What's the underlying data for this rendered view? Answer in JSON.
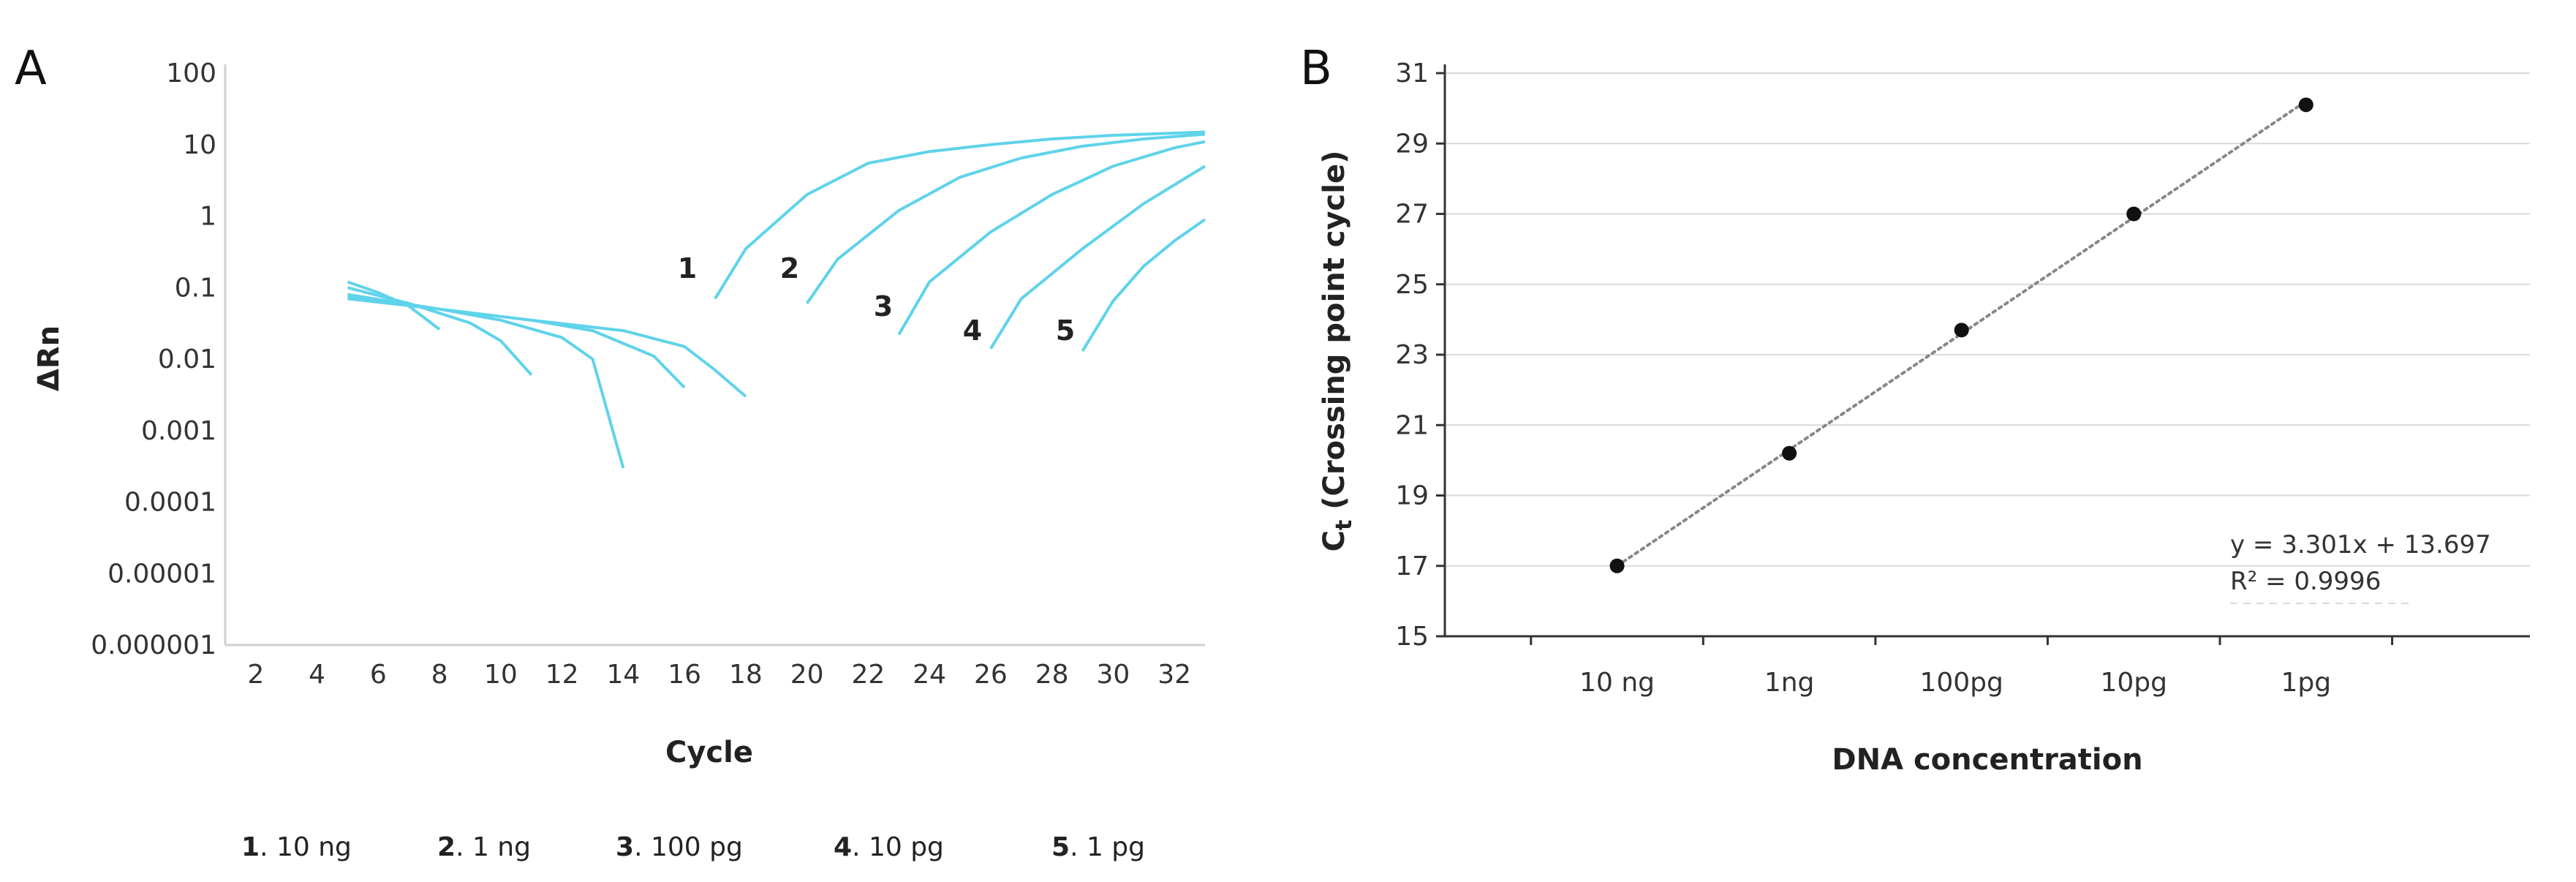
{
  "chart_data": [
    {
      "type": "line",
      "panel_label": "A",
      "xlabel": "Cycle",
      "ylabel": "ΔRn",
      "yscale": "log",
      "xlim": [
        1,
        33
      ],
      "ylim": [
        1e-06,
        100
      ],
      "x_ticks": [
        "2",
        "4",
        "6",
        "8",
        "10",
        "12",
        "14",
        "16",
        "18",
        "20",
        "22",
        "24",
        "26",
        "28",
        "30",
        "32"
      ],
      "y_ticks": [
        "100",
        "10",
        "1",
        "0.1",
        "0.01",
        "0.001",
        "0.0001",
        "0.00001",
        "0.000001"
      ],
      "line_color": "#5fd3ea",
      "baseline_series": [
        {
          "x": [
            5,
            6,
            7,
            8
          ],
          "y": [
            0.12,
            0.085,
            0.055,
            0.026
          ]
        },
        {
          "x": [
            5,
            7,
            9,
            10,
            11
          ],
          "y": [
            0.1,
            0.06,
            0.032,
            0.018,
            0.006
          ]
        },
        {
          "x": [
            5,
            8,
            10,
            12,
            13,
            14
          ],
          "y": [
            0.08,
            0.05,
            0.035,
            0.02,
            0.01,
            0.0003
          ]
        },
        {
          "x": [
            5,
            8,
            11,
            13,
            15,
            16
          ],
          "y": [
            0.075,
            0.05,
            0.035,
            0.025,
            0.011,
            0.004
          ]
        },
        {
          "x": [
            5,
            8,
            11,
            14,
            16,
            17,
            18
          ],
          "y": [
            0.07,
            0.05,
            0.035,
            0.025,
            0.015,
            0.007,
            0.003
          ]
        }
      ],
      "series": [
        {
          "name": "1",
          "x": [
            17,
            18,
            20,
            22,
            24,
            26,
            28,
            30,
            32,
            33
          ],
          "y": [
            0.07,
            0.35,
            2,
            5.5,
            8,
            10,
            12,
            13.5,
            14.5,
            15
          ]
        },
        {
          "name": "2",
          "x": [
            20,
            21,
            23,
            25,
            27,
            29,
            31,
            33
          ],
          "y": [
            0.06,
            0.25,
            1.2,
            3.5,
            6.5,
            9.5,
            12,
            14
          ]
        },
        {
          "name": "3",
          "x": [
            23,
            24,
            26,
            28,
            30,
            32,
            33
          ],
          "y": [
            0.022,
            0.12,
            0.6,
            2,
            5,
            9,
            11
          ]
        },
        {
          "name": "4",
          "x": [
            26,
            27,
            29,
            31,
            33
          ],
          "y": [
            0.014,
            0.07,
            0.35,
            1.5,
            5
          ]
        },
        {
          "name": "5",
          "x": [
            29,
            30,
            31,
            32,
            33
          ],
          "y": [
            0.013,
            0.065,
            0.2,
            0.45,
            0.9
          ]
        }
      ],
      "legend": [
        {
          "num": "1",
          "text": ". 10 ng"
        },
        {
          "num": "2",
          "text": ". 1 ng"
        },
        {
          "num": "3",
          "text": ". 100 pg"
        },
        {
          "num": "4",
          "text": ". 10 pg"
        },
        {
          "num": "5",
          "text": ". 1 pg"
        }
      ]
    },
    {
      "type": "scatter",
      "panel_label": "B",
      "xlabel": "DNA concentration",
      "ylabel_main": "C",
      "ylabel_sub": "t",
      "ylabel_rest": " (Crossing point cycle)",
      "categories": [
        "10 ng",
        "1ng",
        "100pg",
        "10pg",
        "1pg"
      ],
      "values": [
        17,
        20.2,
        23.7,
        27,
        30.1
      ],
      "ylim": [
        15,
        31
      ],
      "y_ticks": [
        "15",
        "17",
        "19",
        "21",
        "23",
        "25",
        "27",
        "29",
        "31"
      ],
      "grid": true,
      "trendline": {
        "slope": 3.301,
        "intercept": 13.697,
        "style": "dotted"
      },
      "equation": "y = 3.301x + 13.697",
      "r2_label": "R² = 0.9996",
      "point_color": "#111111",
      "trend_color": "#888888"
    }
  ]
}
